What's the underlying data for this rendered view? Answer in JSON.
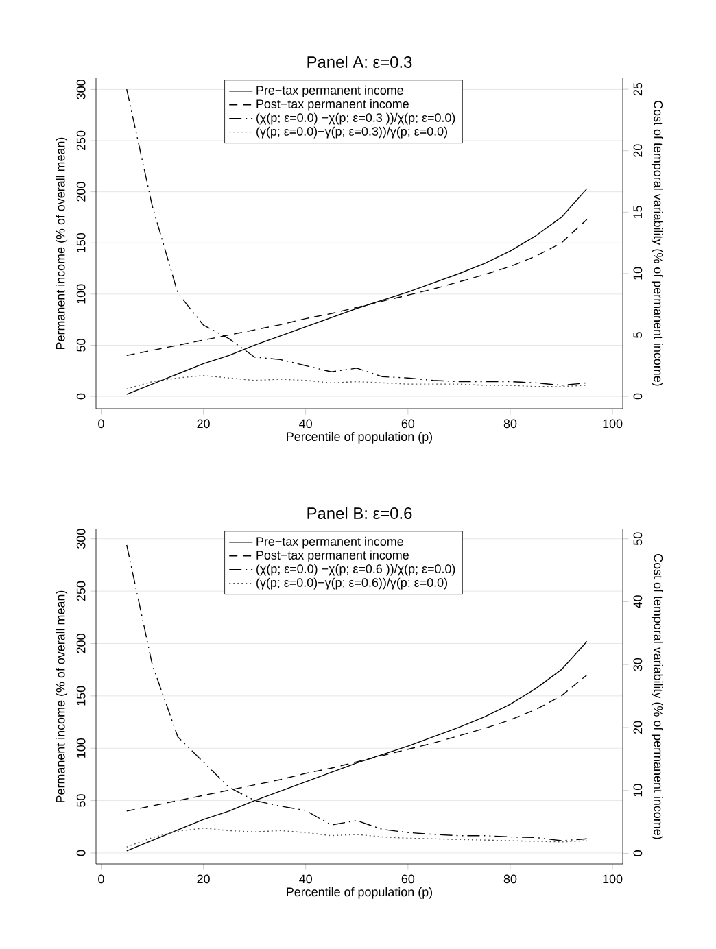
{
  "chart_data": [
    {
      "type": "line",
      "title": "Panel A: ε=0.3",
      "xlabel": "Percentile of population (p)",
      "ylabel": "Permanent income (% of overall mean)",
      "y2label": "Cost of temporal variability (% of permanent income)",
      "x": [
        5,
        10,
        15,
        20,
        25,
        30,
        35,
        40,
        45,
        50,
        55,
        60,
        65,
        70,
        75,
        80,
        85,
        90,
        95
      ],
      "xlim": [
        -1,
        102
      ],
      "xticks": [
        0,
        20,
        40,
        60,
        80,
        100
      ],
      "ylim": [
        -12,
        311
      ],
      "yticks": [
        0,
        50,
        100,
        150,
        200,
        250,
        300
      ],
      "y2lim": [
        -1,
        25.9
      ],
      "y2ticks": [
        0,
        5,
        10,
        15,
        20,
        25
      ],
      "grid": "y",
      "legend": "top",
      "marker": "none",
      "series": [
        {
          "name": "Pre−tax permanent income",
          "color": "#000000",
          "line_style": "solid",
          "values": [
            2,
            12,
            22,
            32,
            40,
            50,
            59,
            68,
            77,
            86,
            94,
            102,
            111,
            120,
            130,
            142,
            157,
            175,
            203
          ]
        },
        {
          "name": "Post−tax permanent income",
          "color": "#000000",
          "line_style": "dashed",
          "values": [
            40,
            45,
            50,
            55,
            60,
            65,
            70,
            76,
            81,
            87,
            93,
            99,
            105,
            112,
            119,
            127,
            137,
            150,
            173
          ]
        },
        {
          "name": "(χ(p; ε=0.0) −χ(p; ε=0.3 ))/χ(p; ε=0.0)",
          "color": "#000000",
          "line_style": "dashdotted",
          "axis": "y2",
          "values": [
            25,
            15.5,
            8.4,
            5.8,
            4.7,
            3.2,
            3,
            2.5,
            2,
            2.3,
            1.6,
            1.5,
            1.3,
            1.2,
            1.2,
            1.2,
            1.1,
            0.9,
            1.1
          ]
        },
        {
          "name": "(γ(p; ε=0.0)−γ(p; ε=0.3))/γ(p; ε=0.0)",
          "color": "#555555",
          "line_style": "dotted",
          "axis": "y2",
          "values": [
            0.6,
            1.2,
            1.5,
            1.7,
            1.5,
            1.3,
            1.4,
            1.3,
            1.1,
            1.2,
            1.1,
            1,
            1,
            1,
            0.9,
            0.9,
            0.8,
            0.8,
            0.9
          ]
        }
      ]
    },
    {
      "type": "line",
      "title": "Panel B: ε=0.6",
      "xlabel": "Percentile of population (p)",
      "ylabel": "Permanent income (% of overall mean)",
      "y2label": "Cost of temporal variability (% of permanent income)",
      "x": [
        5,
        10,
        15,
        20,
        25,
        30,
        35,
        40,
        45,
        50,
        55,
        60,
        65,
        70,
        75,
        80,
        85,
        90,
        95
      ],
      "xlim": [
        -1,
        102
      ],
      "xticks": [
        0,
        20,
        40,
        60,
        80,
        100
      ],
      "ylim": [
        -10.5,
        309
      ],
      "yticks": [
        0,
        50,
        100,
        150,
        200,
        250,
        300
      ],
      "y2lim": [
        -1.7,
        51.5
      ],
      "y2ticks": [
        0,
        10,
        20,
        30,
        40,
        50
      ],
      "grid": "y",
      "legend": "top",
      "marker": "none",
      "series": [
        {
          "name": "Pre−tax permanent income",
          "color": "#000000",
          "line_style": "solid",
          "values": [
            2,
            12,
            22,
            32,
            40,
            50,
            59,
            68,
            77,
            86,
            94,
            102,
            111,
            120,
            130,
            142,
            157,
            175,
            202
          ]
        },
        {
          "name": "Post−tax permanent income",
          "color": "#000000",
          "line_style": "dashed",
          "values": [
            40,
            45,
            50,
            55,
            60,
            65,
            70,
            76,
            81,
            87,
            93,
            99,
            105,
            112,
            119,
            127,
            137,
            150,
            170
          ]
        },
        {
          "name": "(χ(p; ε=0.0) −χ(p; ε=0.6 ))/χ(p; ε=0.0)",
          "color": "#000000",
          "line_style": "dashdotted",
          "axis": "y2",
          "values": [
            49,
            30,
            18.5,
            14.5,
            10.5,
            8.4,
            7.5,
            6.8,
            4.5,
            5.2,
            3.8,
            3.3,
            3,
            2.8,
            2.8,
            2.6,
            2.5,
            2,
            2.3
          ]
        },
        {
          "name": "(γ(p; ε=0.0)−γ(p; ε=0.6))/γ(p; ε=0.0)",
          "color": "#555555",
          "line_style": "dotted",
          "axis": "y2",
          "values": [
            1,
            2.5,
            3.5,
            4,
            3.6,
            3.4,
            3.6,
            3.3,
            2.8,
            3,
            2.6,
            2.4,
            2.3,
            2.2,
            2.1,
            2,
            1.9,
            1.8,
            2
          ]
        }
      ]
    }
  ]
}
